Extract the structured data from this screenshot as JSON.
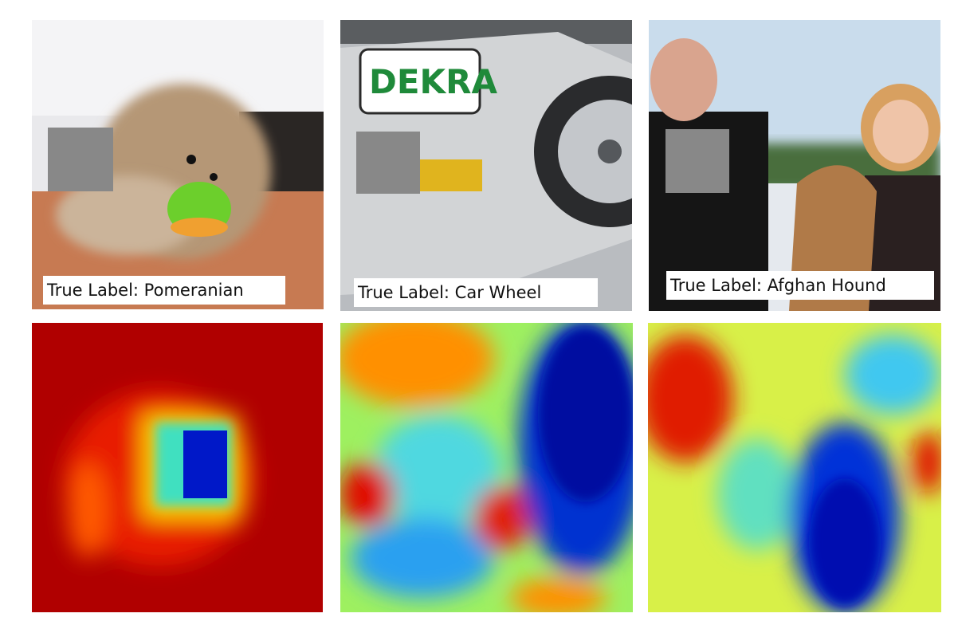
{
  "panels": [
    {
      "label": "True Label: Pomeranian"
    },
    {
      "label": "True Label: Car Wheel"
    },
    {
      "label": "True Label: Afghan Hound"
    }
  ]
}
